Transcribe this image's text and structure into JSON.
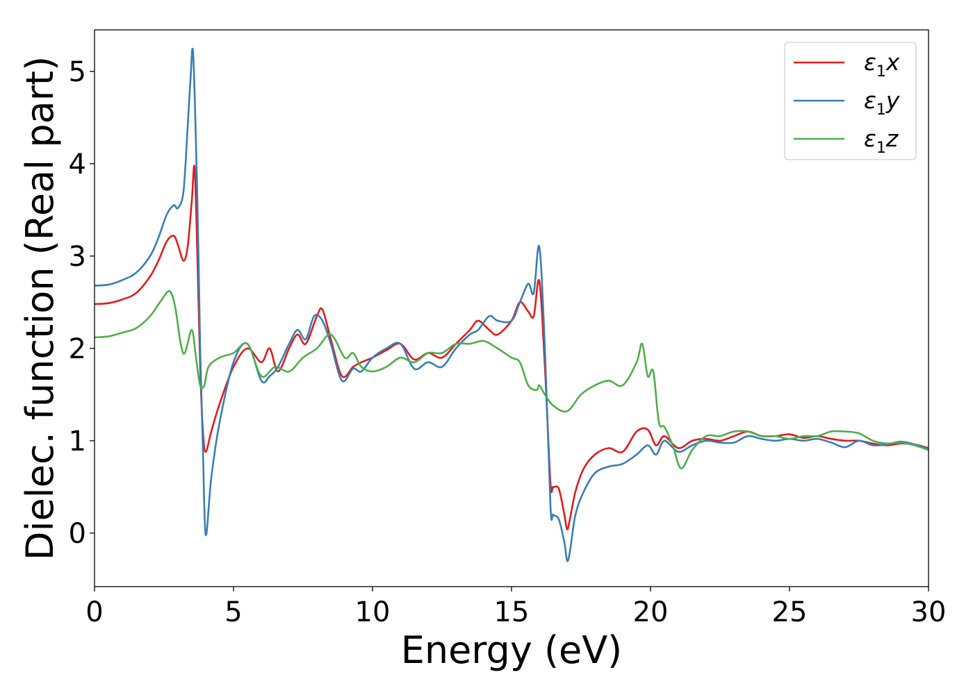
{
  "chart_data": {
    "type": "line",
    "title": "",
    "xlabel": "Energy (eV)",
    "ylabel": "Dielec. function (Real part)",
    "xlim": [
      0,
      30
    ],
    "ylim": [
      -0.58,
      5.45
    ],
    "xticks": [
      0,
      5,
      10,
      15,
      20,
      25,
      30
    ],
    "yticks": [
      0,
      1,
      2,
      3,
      4,
      5
    ],
    "grid": false,
    "legend_position": "top-right",
    "series": [
      {
        "name": "ε1x",
        "symbol": "ε",
        "sub": "1",
        "suffix": "x",
        "color": "#e41a1c",
        "x": [
          0,
          0.5,
          1.0,
          1.5,
          2.0,
          2.3,
          2.6,
          2.85,
          3.0,
          3.2,
          3.35,
          3.5,
          3.6,
          3.7,
          3.8,
          3.9,
          4.0,
          4.2,
          4.5,
          5.0,
          5.5,
          6.0,
          6.3,
          6.6,
          7.0,
          7.3,
          7.6,
          8.0,
          8.2,
          8.5,
          8.9,
          9.3,
          9.6,
          10.0,
          10.5,
          11.0,
          11.5,
          12.0,
          12.5,
          13.0,
          13.5,
          13.8,
          14.2,
          14.5,
          15.0,
          15.3,
          15.6,
          15.8,
          16.0,
          16.2,
          16.4,
          16.5,
          16.7,
          16.9,
          17.0,
          17.1,
          17.3,
          17.6,
          18.0,
          18.5,
          19.0,
          19.5,
          19.9,
          20.2,
          20.5,
          21.0,
          21.5,
          22.0,
          22.5,
          23.0,
          23.5,
          24.0,
          24.5,
          25.0,
          25.5,
          26.0,
          26.5,
          27.0,
          27.5,
          28.0,
          28.5,
          29.0,
          29.5,
          30.0
        ],
        "values": [
          2.48,
          2.49,
          2.53,
          2.6,
          2.78,
          2.95,
          3.16,
          3.22,
          3.12,
          2.95,
          3.1,
          3.6,
          3.96,
          3.0,
          1.8,
          1.1,
          0.88,
          1.1,
          1.4,
          1.8,
          2.0,
          1.85,
          2.0,
          1.75,
          2.0,
          2.15,
          2.05,
          2.35,
          2.42,
          2.1,
          1.7,
          1.8,
          1.85,
          1.9,
          1.98,
          2.05,
          1.88,
          1.95,
          1.9,
          2.05,
          2.2,
          2.3,
          2.2,
          2.15,
          2.3,
          2.5,
          2.4,
          2.35,
          2.73,
          1.8,
          0.55,
          0.5,
          0.48,
          0.2,
          0.04,
          0.15,
          0.45,
          0.7,
          0.85,
          0.92,
          0.88,
          1.1,
          1.12,
          0.95,
          1.05,
          0.92,
          1.0,
          1.02,
          1.0,
          1.05,
          1.1,
          1.05,
          1.05,
          1.07,
          1.03,
          1.05,
          1.02,
          1.0,
          1.0,
          0.97,
          0.95,
          0.97,
          0.96,
          0.92
        ]
      },
      {
        "name": "ε1y",
        "symbol": "ε",
        "sub": "1",
        "suffix": "y",
        "color": "#377eb8",
        "x": [
          0,
          0.5,
          1.0,
          1.5,
          2.0,
          2.3,
          2.6,
          2.85,
          3.0,
          3.2,
          3.35,
          3.45,
          3.55,
          3.7,
          3.8,
          3.9,
          4.0,
          4.2,
          4.5,
          5.0,
          5.5,
          6.0,
          6.3,
          6.6,
          7.0,
          7.3,
          7.6,
          7.9,
          8.2,
          8.5,
          8.9,
          9.3,
          9.6,
          10.0,
          10.5,
          11.0,
          11.5,
          12.0,
          12.5,
          13.0,
          13.5,
          13.8,
          14.2,
          14.5,
          15.0,
          15.3,
          15.6,
          15.8,
          16.0,
          16.2,
          16.4,
          16.5,
          16.7,
          16.9,
          17.0,
          17.1,
          17.3,
          17.6,
          18.0,
          18.5,
          19.0,
          19.5,
          19.9,
          20.2,
          20.5,
          21.0,
          21.5,
          22.0,
          22.5,
          23.0,
          23.5,
          24.0,
          24.5,
          25.0,
          25.5,
          26.0,
          26.5,
          27.0,
          27.5,
          28.0,
          28.5,
          29.0,
          29.5,
          30.0
        ],
        "values": [
          2.68,
          2.69,
          2.74,
          2.82,
          3.0,
          3.2,
          3.45,
          3.55,
          3.52,
          3.7,
          4.4,
          4.9,
          5.18,
          3.6,
          2.0,
          0.9,
          -0.02,
          0.6,
          1.2,
          1.85,
          2.05,
          1.65,
          1.7,
          1.8,
          2.05,
          2.2,
          2.1,
          2.35,
          2.3,
          2.05,
          1.65,
          1.78,
          1.75,
          1.9,
          2.0,
          2.05,
          1.78,
          1.85,
          1.8,
          2.0,
          2.15,
          2.2,
          2.35,
          2.3,
          2.3,
          2.5,
          2.7,
          2.6,
          3.1,
          2.0,
          0.3,
          0.2,
          0.15,
          -0.1,
          -0.3,
          -0.2,
          0.2,
          0.45,
          0.65,
          0.72,
          0.75,
          0.85,
          0.95,
          0.85,
          1.0,
          0.88,
          0.95,
          1.0,
          0.98,
          0.98,
          1.05,
          1.02,
          1.0,
          1.02,
          1.0,
          1.02,
          0.98,
          0.93,
          1.0,
          0.95,
          0.96,
          0.99,
          0.96,
          0.91
        ]
      },
      {
        "name": "ε1z",
        "symbol": "ε",
        "sub": "1",
        "suffix": "z",
        "color": "#4daf4a",
        "x": [
          0,
          0.5,
          1.0,
          1.5,
          2.0,
          2.4,
          2.7,
          2.9,
          3.1,
          3.25,
          3.5,
          3.65,
          3.8,
          3.95,
          4.1,
          4.5,
          5.0,
          5.5,
          6.0,
          6.5,
          7.0,
          7.5,
          8.0,
          8.5,
          9.0,
          9.3,
          9.6,
          10.0,
          10.5,
          11.0,
          11.5,
          12.0,
          12.5,
          13.0,
          13.5,
          14.0,
          14.5,
          15.0,
          15.3,
          15.6,
          15.9,
          16.0,
          16.2,
          16.5,
          17.0,
          17.5,
          18.0,
          18.5,
          19.0,
          19.5,
          19.7,
          19.9,
          20.1,
          20.3,
          20.5,
          20.8,
          21.1,
          21.5,
          22.0,
          22.5,
          23.0,
          23.5,
          24.0,
          24.5,
          25.0,
          25.5,
          26.0,
          26.5,
          27.0,
          27.5,
          28.0,
          28.5,
          29.0,
          29.5,
          30.0
        ],
        "values": [
          2.12,
          2.13,
          2.17,
          2.22,
          2.35,
          2.52,
          2.62,
          2.45,
          2.05,
          1.95,
          2.2,
          1.9,
          1.6,
          1.6,
          1.8,
          1.9,
          1.95,
          2.05,
          1.7,
          1.8,
          1.75,
          1.9,
          2.0,
          2.15,
          1.9,
          1.95,
          1.8,
          1.75,
          1.8,
          1.9,
          1.85,
          1.95,
          1.95,
          2.05,
          2.05,
          2.08,
          2.0,
          1.9,
          1.85,
          1.6,
          1.55,
          1.6,
          1.5,
          1.38,
          1.32,
          1.5,
          1.6,
          1.65,
          1.6,
          1.85,
          2.05,
          1.7,
          1.75,
          1.2,
          1.15,
          0.95,
          0.7,
          0.9,
          1.05,
          1.05,
          1.1,
          1.1,
          1.05,
          1.05,
          1.02,
          1.05,
          1.05,
          1.1,
          1.1,
          1.08,
          1.0,
          0.97,
          0.98,
          0.95,
          0.9
        ]
      }
    ]
  }
}
